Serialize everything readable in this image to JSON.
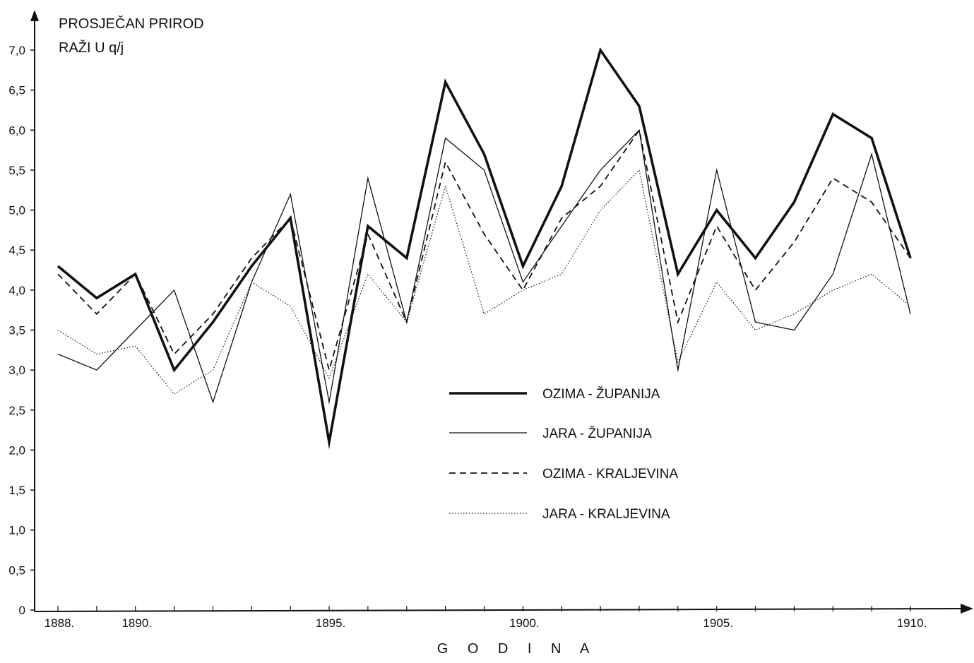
{
  "chart_data": {
    "type": "line",
    "title_lines": [
      "PROSJEČAN PRIROD",
      "RAŽI U q/j"
    ],
    "xlabel": "G O D I N A",
    "ylabel": "",
    "x": [
      1888,
      1889,
      1890,
      1891,
      1892,
      1893,
      1894,
      1895,
      1896,
      1897,
      1898,
      1899,
      1900,
      1901,
      1902,
      1903,
      1904,
      1905,
      1906,
      1907,
      1908,
      1909,
      1910
    ],
    "x_tick_values": [
      1888,
      1890,
      1895,
      1900,
      1905,
      1910
    ],
    "x_tick_labels": [
      "1888.",
      "1890.",
      "1895.",
      "1900.",
      "1905.",
      "1910."
    ],
    "ylim": [
      0,
      7.0
    ],
    "y_tick_values": [
      0,
      0.5,
      1.0,
      1.5,
      2.0,
      2.5,
      3.0,
      3.5,
      4.0,
      4.5,
      5.0,
      5.5,
      6.0,
      6.5,
      7.0
    ],
    "y_tick_labels": [
      "0",
      "0,5",
      "1,0",
      "1,5",
      "2,0",
      "2,5",
      "3,0",
      "3,5",
      "4,0",
      "4,5",
      "5,0",
      "5,5",
      "6,0",
      "6,5",
      "7,0"
    ],
    "grid": false,
    "legend_position": "center-right",
    "series": [
      {
        "name": "OZIMA - ŽUPANIJA",
        "style": "thick-solid",
        "color": "#111111",
        "values": [
          4.3,
          3.9,
          4.2,
          3.0,
          3.6,
          4.3,
          4.9,
          2.1,
          4.8,
          4.4,
          6.6,
          5.7,
          4.3,
          5.3,
          7.0,
          6.3,
          4.2,
          5.0,
          4.4,
          5.1,
          6.2,
          5.9,
          4.4
        ]
      },
      {
        "name": "JARA - ŽUPANIJA",
        "style": "thin-solid",
        "color": "#111111",
        "values": [
          3.2,
          3.0,
          3.5,
          4.0,
          2.6,
          4.1,
          5.2,
          2.6,
          5.4,
          3.6,
          5.9,
          5.5,
          4.1,
          4.8,
          5.5,
          6.0,
          3.0,
          5.5,
          3.6,
          3.5,
          4.2,
          5.7,
          3.7
        ]
      },
      {
        "name": "OZIMA - KRALJEVINA",
        "style": "dashed",
        "color": "#111111",
        "values": [
          4.2,
          3.7,
          4.2,
          3.2,
          3.7,
          4.4,
          4.9,
          3.0,
          4.7,
          3.6,
          5.6,
          4.7,
          4.0,
          4.9,
          5.3,
          6.0,
          3.6,
          4.8,
          4.0,
          4.6,
          5.4,
          5.1,
          4.4
        ]
      },
      {
        "name": "JARA - KRALJEVINA",
        "style": "dotted",
        "color": "#111111",
        "values": [
          3.5,
          3.2,
          3.3,
          2.7,
          3.0,
          4.1,
          3.8,
          2.9,
          4.2,
          3.6,
          5.3,
          3.7,
          4.0,
          4.2,
          5.0,
          5.5,
          3.1,
          4.1,
          3.5,
          3.7,
          4.0,
          4.2,
          3.8
        ]
      }
    ]
  }
}
